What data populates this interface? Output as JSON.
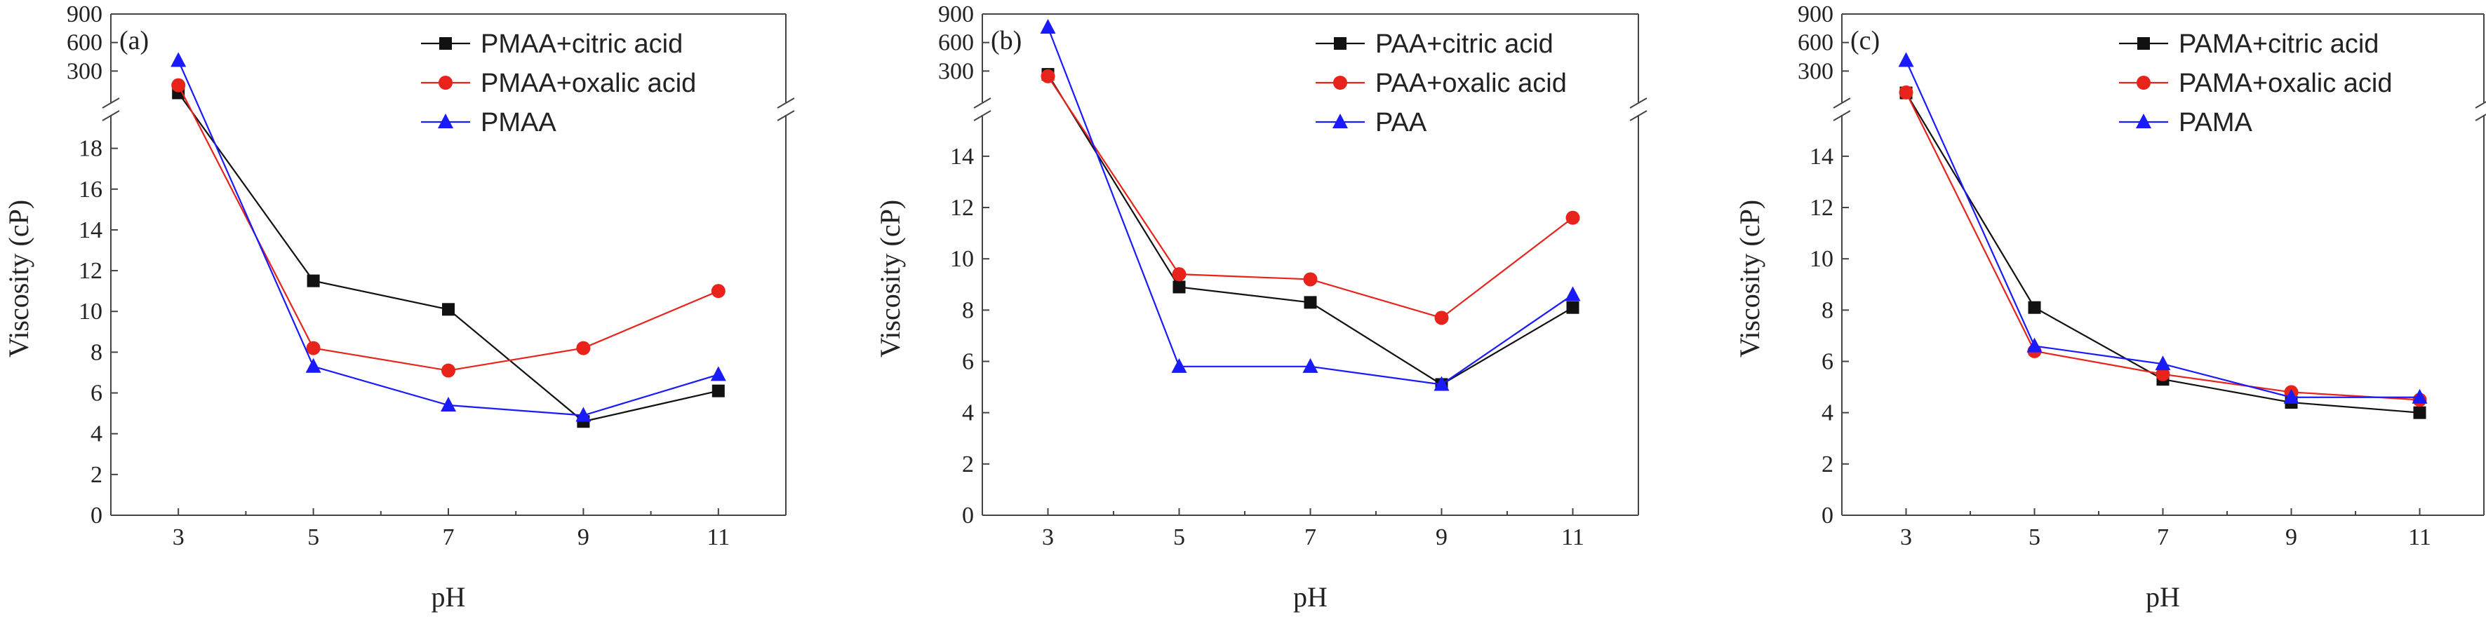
{
  "chart_data": [
    {
      "type": "line",
      "panel_label": "(a)",
      "xlabel": "pH",
      "ylabel": "Viscosity (cP)",
      "categories": [
        "3",
        "5",
        "7",
        "9",
        "11"
      ],
      "x": [
        3,
        5,
        7,
        9,
        11
      ],
      "ylim_lower": [
        0,
        19.5
      ],
      "ylim_upper": [
        0,
        900
      ],
      "yticks_lower": [
        "0",
        "2",
        "4",
        "6",
        "8",
        "10",
        "12",
        "14",
        "16",
        "18"
      ],
      "yticks_upper": [
        "300",
        "600",
        "900"
      ],
      "legend_position": "top-right",
      "grid": false,
      "series": [
        {
          "name": "PMAA+citric acid",
          "color": "#111111",
          "marker": "square",
          "values": [
            70,
            11.5,
            10.1,
            4.6,
            6.1
          ]
        },
        {
          "name": "PMAA+oxalic acid",
          "color": "#e8231b",
          "marker": "circle",
          "values": [
            150,
            8.2,
            7.1,
            8.2,
            11.0
          ]
        },
        {
          "name": "PMAA",
          "color": "#1a1aff",
          "marker": "triangle",
          "values": [
            410,
            7.3,
            5.4,
            4.9,
            6.9
          ]
        }
      ]
    },
    {
      "type": "line",
      "panel_label": "(b)",
      "xlabel": "pH",
      "ylabel": "Viscosity (cP)",
      "categories": [
        "3",
        "5",
        "7",
        "9",
        "11"
      ],
      "x": [
        3,
        5,
        7,
        9,
        11
      ],
      "ylim_lower": [
        0,
        15.5
      ],
      "ylim_upper": [
        0,
        900
      ],
      "yticks_lower": [
        "0",
        "2",
        "4",
        "6",
        "8",
        "10",
        "12",
        "14"
      ],
      "yticks_upper": [
        "300",
        "600",
        "900"
      ],
      "legend_position": "top-right",
      "grid": false,
      "series": [
        {
          "name": "PAA+citric acid",
          "color": "#111111",
          "marker": "square",
          "values": [
            265,
            8.9,
            8.3,
            5.1,
            8.1
          ]
        },
        {
          "name": "PAA+oxalic acid",
          "color": "#e8231b",
          "marker": "circle",
          "values": [
            245,
            9.4,
            9.2,
            7.7,
            11.6
          ]
        },
        {
          "name": "PAA",
          "color": "#1a1aff",
          "marker": "triangle",
          "values": [
            760,
            5.8,
            5.8,
            5.1,
            8.6
          ]
        }
      ]
    },
    {
      "type": "line",
      "panel_label": "(c)",
      "xlabel": "pH",
      "ylabel": "Viscosity (cP)",
      "categories": [
        "3",
        "5",
        "7",
        "9",
        "11"
      ],
      "x": [
        3,
        5,
        7,
        9,
        11
      ],
      "ylim_lower": [
        0,
        15.5
      ],
      "ylim_upper": [
        0,
        900
      ],
      "yticks_lower": [
        "0",
        "2",
        "4",
        "6",
        "8",
        "10",
        "12",
        "14"
      ],
      "yticks_upper": [
        "300",
        "600",
        "900"
      ],
      "legend_position": "top-right",
      "grid": false,
      "series": [
        {
          "name": "PAMA+citric acid",
          "color": "#111111",
          "marker": "square",
          "values": [
            70,
            8.1,
            5.3,
            4.4,
            4.0
          ]
        },
        {
          "name": "PAMA+oxalic acid",
          "color": "#e8231b",
          "marker": "circle",
          "values": [
            75,
            6.4,
            5.5,
            4.8,
            4.5
          ]
        },
        {
          "name": "PAMA",
          "color": "#1a1aff",
          "marker": "triangle",
          "values": [
            410,
            6.6,
            5.9,
            4.6,
            4.6
          ]
        }
      ]
    }
  ]
}
